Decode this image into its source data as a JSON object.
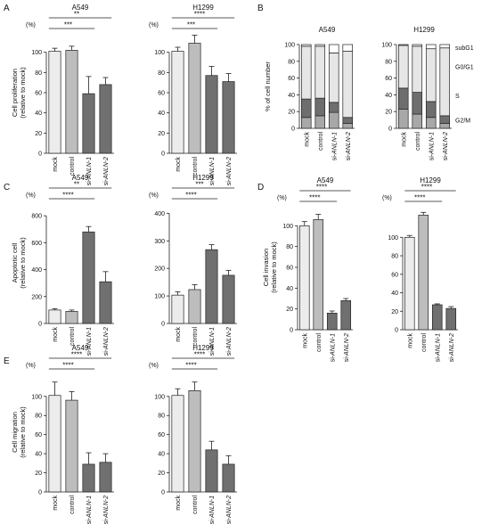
{
  "colors": {
    "mock": "#ececec",
    "control": "#bdbdbd",
    "si1": "#707070",
    "si2": "#707070",
    "axis": "#222222",
    "subG1": "#ffffff",
    "G0G1": "#e6e6e6",
    "S": "#6e6e6e",
    "G2M": "#a8a8a8"
  },
  "chart_data": [
    {
      "id": "A1",
      "panel_letter": "A",
      "title": "A549",
      "type": "bar",
      "ylabel": "Cell proliferation",
      "ylabel2": "(relative to mock)",
      "unit": "(%)",
      "categories": [
        "mock",
        "control",
        "si-ANLN-1",
        "si-ANLN-2"
      ],
      "values": [
        101,
        102,
        59,
        68
      ],
      "errors": [
        3,
        4,
        17,
        7
      ],
      "ylim": [
        0,
        120
      ],
      "yticks": [
        0,
        20,
        40,
        60,
        80,
        100
      ],
      "significance": [
        {
          "from": 0,
          "to": 3,
          "label": "**"
        },
        {
          "from": 0,
          "to": 2,
          "label": "***"
        }
      ]
    },
    {
      "id": "A2",
      "title": "H1299",
      "type": "bar",
      "ylabel": "",
      "ylabel2": "",
      "unit": "(%)",
      "categories": [
        "mock",
        "control",
        "si-ANLN-1",
        "si-ANLN-2"
      ],
      "values": [
        101,
        109,
        77,
        71
      ],
      "errors": [
        4,
        8,
        9,
        8
      ],
      "ylim": [
        0,
        120
      ],
      "yticks": [
        0,
        20,
        40,
        60,
        80,
        100
      ],
      "significance": [
        {
          "from": 0,
          "to": 3,
          "label": "****"
        },
        {
          "from": 0,
          "to": 2,
          "label": "***"
        }
      ]
    },
    {
      "id": "B1",
      "panel_letter": "B",
      "title": "A549",
      "type": "stacked-bar",
      "ylabel": "% of cell number",
      "categories": [
        "mock",
        "control",
        "si-ANLN-1",
        "si-ANLN-2"
      ],
      "series": [
        {
          "name": "G2/M",
          "values": [
            13,
            15,
            19,
            6
          ]
        },
        {
          "name": "S",
          "values": [
            22,
            21,
            12,
            7
          ]
        },
        {
          "name": "G0/G1",
          "values": [
            63,
            62,
            59,
            79
          ]
        },
        {
          "name": "subG1",
          "values": [
            2,
            2,
            10,
            8
          ]
        }
      ],
      "ylim": [
        0,
        100
      ],
      "yticks": [
        0,
        20,
        40,
        60,
        80,
        100
      ],
      "legend": []
    },
    {
      "id": "B2",
      "title": "H1299",
      "type": "stacked-bar",
      "ylabel": "",
      "categories": [
        "mock",
        "control",
        "si-ANLN-1",
        "si-ANLN-2"
      ],
      "series": [
        {
          "name": "G2/M",
          "values": [
            23,
            17,
            13,
            6
          ]
        },
        {
          "name": "S",
          "values": [
            25,
            26,
            19,
            9
          ]
        },
        {
          "name": "G0/G1",
          "values": [
            51,
            55,
            63,
            81
          ]
        },
        {
          "name": "subG1",
          "values": [
            1,
            2,
            5,
            4
          ]
        }
      ],
      "ylim": [
        0,
        100
      ],
      "yticks": [
        0,
        20,
        40,
        60,
        80,
        100
      ],
      "legend": [
        "subG1",
        "G0/G1",
        "S",
        "G2/M"
      ]
    },
    {
      "id": "C1",
      "panel_letter": "C",
      "title": "A549",
      "type": "bar",
      "ylabel": "Apoptotic cell",
      "ylabel2": "(relative to mock)",
      "unit": "(%)",
      "categories": [
        "mock",
        "control",
        "si-ANLN-1",
        "si-ANLN-2"
      ],
      "values": [
        100,
        90,
        680,
        310
      ],
      "errors": [
        10,
        10,
        40,
        75
      ],
      "ylim": [
        0,
        900
      ],
      "yticks": [
        0,
        200,
        400,
        600,
        800
      ],
      "significance": [
        {
          "from": 0,
          "to": 3,
          "label": "**"
        },
        {
          "from": 0,
          "to": 2,
          "label": "****"
        }
      ]
    },
    {
      "id": "C2",
      "title": "H1299",
      "type": "bar",
      "ylabel": "",
      "ylabel2": "",
      "unit": "(%)",
      "categories": [
        "mock",
        "control",
        "si-ANLN-1",
        "si-ANLN-2"
      ],
      "values": [
        103,
        123,
        268,
        175
      ],
      "errors": [
        12,
        18,
        18,
        18
      ],
      "ylim": [
        0,
        440
      ],
      "yticks": [
        0,
        100,
        200,
        300,
        400
      ],
      "significance": [
        {
          "from": 0,
          "to": 3,
          "label": "***"
        },
        {
          "from": 0,
          "to": 2,
          "label": "****"
        }
      ]
    },
    {
      "id": "D1",
      "panel_letter": "D",
      "title": "A549",
      "type": "bar",
      "ylabel": "Cell invasion",
      "ylabel2": "(relative to mock)",
      "unit": "(%)",
      "categories": [
        "mock",
        "control",
        "si-ANLN-1",
        "si-ANLN-2"
      ],
      "values": [
        100,
        106,
        16,
        28
      ],
      "errors": [
        4,
        5,
        2,
        2
      ],
      "ylim": [
        0,
        120
      ],
      "yticks": [
        0,
        20,
        40,
        60,
        80,
        100
      ],
      "significance": [
        {
          "from": 0,
          "to": 3,
          "label": "****"
        },
        {
          "from": 0,
          "to": 2,
          "label": "****"
        }
      ]
    },
    {
      "id": "D2",
      "title": "H1299",
      "type": "bar",
      "ylabel": "",
      "ylabel2": "",
      "unit": "(%)",
      "categories": [
        "mock",
        "control",
        "si-ANLN-1",
        "si-ANLN-2"
      ],
      "values": [
        100,
        124,
        27,
        23
      ],
      "errors": [
        2,
        3,
        1,
        2
      ],
      "ylim": [
        0,
        135
      ],
      "yticks": [
        0,
        20,
        40,
        60,
        80,
        100
      ],
      "significance": [
        {
          "from": 0,
          "to": 3,
          "label": "****"
        },
        {
          "from": 0,
          "to": 2,
          "label": "****"
        }
      ]
    },
    {
      "id": "E1",
      "panel_letter": "E",
      "title": "A549",
      "type": "bar",
      "ylabel": "Cell migration",
      "ylabel2": "(relative to mock)",
      "unit": "(%)",
      "categories": [
        "mock",
        "control",
        "si-ANLN-1",
        "si-ANLN-2"
      ],
      "values": [
        101,
        96,
        29,
        31
      ],
      "errors": [
        14,
        9,
        12,
        9
      ],
      "ylim": [
        0,
        125
      ],
      "yticks": [
        0,
        20,
        40,
        60,
        80,
        100
      ],
      "significance": [
        {
          "from": 0,
          "to": 3,
          "label": "****"
        },
        {
          "from": 0,
          "to": 2,
          "label": "****"
        }
      ]
    },
    {
      "id": "E2",
      "title": "H1299",
      "type": "bar",
      "ylabel": "",
      "ylabel2": "",
      "unit": "(%)",
      "categories": [
        "mock",
        "control",
        "si-ANLN-1",
        "si-ANLN-2"
      ],
      "values": [
        101,
        106,
        44,
        29
      ],
      "errors": [
        7,
        9,
        9,
        9
      ],
      "ylim": [
        0,
        125
      ],
      "yticks": [
        0,
        20,
        40,
        60,
        80,
        100
      ],
      "significance": [
        {
          "from": 0,
          "to": 3,
          "label": "****"
        },
        {
          "from": 0,
          "to": 2,
          "label": "****"
        }
      ]
    }
  ]
}
